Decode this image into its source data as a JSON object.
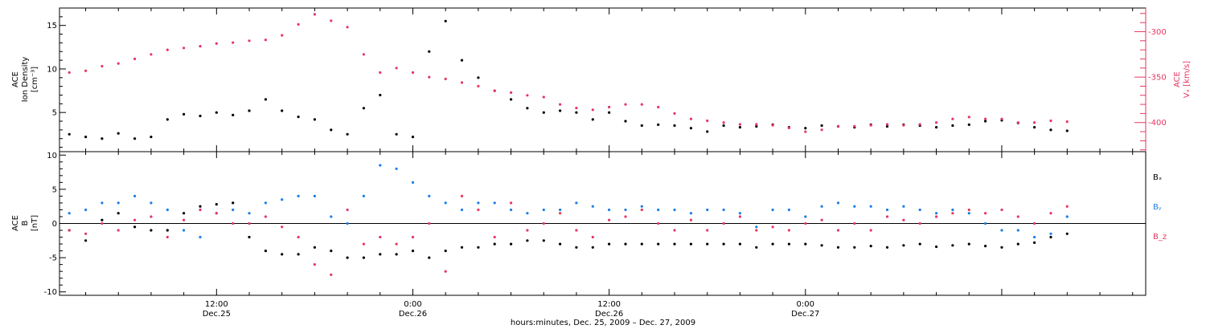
{
  "colors": {
    "black": "#000000",
    "red": "#e8365f",
    "blue": "#1a7fe6"
  },
  "panel_top": {
    "left_axis": {
      "line1": "ACE",
      "line2": "Ion Density",
      "line3": "[cm⁻³]",
      "ticks": [
        "5",
        "10",
        "15"
      ]
    },
    "right_axis": {
      "line1": "ACE",
      "line2": "Vₓ [km/s]",
      "ticks": [
        "-300",
        "-350",
        "-400"
      ]
    }
  },
  "panel_bottom": {
    "left_axis": {
      "line1": "ACE",
      "line2": "B",
      "line3": "[nT]",
      "ticks": [
        "10",
        "5",
        "0",
        "-5",
        "-10"
      ]
    },
    "legend": [
      "Bₓ",
      "Bᵧ",
      "B_z"
    ]
  },
  "x_axis": {
    "tick_labels": [
      {
        "time": "12:00",
        "date": "Dec.25"
      },
      {
        "time": "0:00",
        "date": "Dec.26"
      },
      {
        "time": "12:00",
        "date": "Dec.26"
      },
      {
        "time": "0:00",
        "date": "Dec.27"
      }
    ],
    "title": "hours:minutes, Dec. 25, 2009 – Dec. 27, 2009"
  },
  "chart_data": [
    {
      "type": "scatter",
      "title": "",
      "xlabel": "hours:minutes, Dec. 25, 2009 – Dec. 27, 2009",
      "ylabel": "ACE Ion Density [cm⁻³]",
      "y2label": "ACE Vₓ [km/s]",
      "x_unit": "hours since Dec. 25 00:00",
      "xlim": [
        2.4,
        68.8
      ],
      "ylim": [
        0.5,
        17
      ],
      "y2lim": [
        -432,
        -274
      ],
      "series": [
        {
          "name": "",
          "axis": "left",
          "color": "#000000",
          "x": [
            3,
            4,
            5,
            6,
            7,
            8,
            9,
            10,
            11,
            12,
            13,
            14,
            15,
            16,
            17,
            18,
            19,
            20,
            21,
            22,
            23,
            24,
            25,
            26,
            27,
            28,
            29,
            30,
            31,
            32,
            33,
            34,
            35,
            36,
            37,
            38,
            39,
            40,
            41,
            42,
            43,
            44,
            45,
            46,
            47,
            48,
            49,
            50,
            51,
            52,
            53,
            54,
            55,
            56,
            57,
            58,
            59,
            60,
            61,
            62,
            63,
            64
          ],
          "y": [
            2.5,
            2.2,
            2,
            2.6,
            2,
            2.2,
            4.2,
            4.8,
            4.6,
            5,
            4.7,
            5.2,
            6.5,
            5.2,
            4.5,
            4.2,
            3,
            2.5,
            5.5,
            7,
            2.5,
            2.2,
            12,
            15.5,
            11,
            9,
            7.5,
            6.5,
            5.5,
            5,
            5.2,
            5,
            4.2,
            5,
            4,
            3.5,
            3.6,
            3.5,
            3.2,
            2.8,
            3.5,
            3.3,
            3.4,
            3.6,
            3.3,
            3.2,
            3.5,
            3.4,
            3.3,
            3.6,
            3.4,
            3.6,
            3.5,
            3.3,
            3.5,
            3.6,
            4,
            4.1,
            3.8,
            3.3,
            3,
            2.9
          ]
        },
        {
          "name": "",
          "axis": "right",
          "color": "#e8365f",
          "x": [
            3,
            4,
            5,
            6,
            7,
            8,
            9,
            10,
            11,
            12,
            13,
            14,
            15,
            16,
            17,
            18,
            19,
            20,
            21,
            22,
            23,
            24,
            25,
            26,
            27,
            28,
            29,
            30,
            31,
            32,
            33,
            34,
            35,
            36,
            37,
            38,
            39,
            40,
            41,
            42,
            43,
            44,
            45,
            46,
            47,
            48,
            49,
            50,
            51,
            52,
            53,
            54,
            55,
            56,
            57,
            58,
            59,
            60,
            61,
            62,
            63,
            64
          ],
          "y": [
            -345,
            -343,
            -338,
            -335,
            -330,
            -325,
            -320,
            -318,
            -316,
            -313,
            -312,
            -310,
            -309,
            -304,
            -292,
            -281,
            -288,
            -295,
            -325,
            -345,
            -340,
            -345,
            -350,
            -352,
            -356,
            -360,
            -365,
            -367,
            -370,
            -372,
            -380,
            -384,
            -386,
            -383,
            -380,
            -380,
            -383,
            -390,
            -396,
            -398,
            -400,
            -402,
            -402,
            -403,
            -406,
            -410,
            -408,
            -404,
            -404,
            -403,
            -402,
            -403,
            -402,
            -400,
            -396,
            -394,
            -396,
            -396,
            -400,
            -400,
            -398,
            -399
          ]
        }
      ]
    },
    {
      "type": "scatter",
      "title": "",
      "ylabel": "ACE B [nT]",
      "x_unit": "hours since Dec. 25 00:00",
      "xlim": [
        2.4,
        68.8
      ],
      "ylim": [
        -10.5,
        10.5
      ],
      "zero_line": true,
      "series": [
        {
          "name": "Bₓ",
          "color": "#000000",
          "x": [
            3,
            4,
            5,
            6,
            7,
            8,
            9,
            10,
            11,
            12,
            13,
            14,
            15,
            16,
            17,
            18,
            19,
            20,
            21,
            22,
            23,
            24,
            25,
            26,
            27,
            28,
            29,
            30,
            31,
            32,
            33,
            34,
            35,
            36,
            37,
            38,
            39,
            40,
            41,
            42,
            43,
            44,
            45,
            46,
            47,
            48,
            49,
            50,
            51,
            52,
            53,
            54,
            55,
            56,
            57,
            58,
            59,
            60,
            61,
            62,
            63,
            64
          ],
          "y": [
            -1,
            -2.5,
            0.5,
            1.5,
            -0.5,
            -1,
            -1,
            1.5,
            2.5,
            2.8,
            3,
            -2,
            -4,
            -4.5,
            -4.5,
            -3.5,
            -4,
            -5,
            -5,
            -4.5,
            -4.5,
            -4,
            -5,
            -4,
            -3.5,
            -3.5,
            -3,
            -3,
            -2.5,
            -2.5,
            -3,
            -3.5,
            -3.5,
            -3,
            -3,
            -3,
            -3,
            -3,
            -3,
            -3,
            -3,
            -3,
            -3.5,
            -3,
            -3,
            -3,
            -3.2,
            -3.5,
            -3.5,
            -3.3,
            -3.5,
            -3.2,
            -3,
            -3.4,
            -3.2,
            -3,
            -3.3,
            -3.5,
            -3,
            -2.8,
            -2,
            -1.5
          ]
        },
        {
          "name": "Bᵧ",
          "color": "#1a7fe6",
          "x": [
            3,
            4,
            5,
            6,
            7,
            8,
            9,
            10,
            11,
            12,
            13,
            14,
            15,
            16,
            17,
            18,
            19,
            20,
            21,
            22,
            23,
            24,
            25,
            26,
            27,
            28,
            29,
            30,
            31,
            32,
            33,
            34,
            35,
            36,
            37,
            38,
            39,
            40,
            41,
            42,
            43,
            44,
            45,
            46,
            47,
            48,
            49,
            50,
            51,
            52,
            53,
            54,
            55,
            56,
            57,
            58,
            59,
            60,
            61,
            62,
            63,
            64
          ],
          "y": [
            1.5,
            2,
            3,
            3,
            4,
            3,
            2,
            -1,
            -2,
            1.5,
            2,
            1.5,
            3,
            3.5,
            4,
            4,
            1,
            0,
            4,
            8.5,
            8,
            6,
            4,
            3,
            2,
            3,
            3,
            2,
            1.5,
            2,
            2,
            3,
            2.5,
            2,
            2,
            2.5,
            2,
            2,
            1.5,
            2,
            2,
            1.5,
            -0.5,
            2,
            2,
            1,
            2.5,
            3,
            2.5,
            2.5,
            2,
            2.5,
            2,
            1.5,
            2,
            1.5,
            0,
            -1,
            -1,
            -2,
            -1.5,
            1
          ]
        },
        {
          "name": "B_z",
          "color": "#e8365f",
          "x": [
            3,
            4,
            5,
            6,
            7,
            8,
            9,
            10,
            11,
            12,
            13,
            14,
            15,
            16,
            17,
            18,
            19,
            20,
            21,
            22,
            23,
            24,
            25,
            26,
            27,
            28,
            29,
            30,
            31,
            32,
            33,
            34,
            35,
            36,
            37,
            38,
            39,
            40,
            41,
            42,
            43,
            44,
            45,
            46,
            47,
            48,
            49,
            50,
            51,
            52,
            53,
            54,
            55,
            56,
            57,
            58,
            59,
            60,
            61,
            62,
            63,
            64
          ],
          "y": [
            -1,
            -1.5,
            0,
            -1,
            0.5,
            1,
            -2,
            0.5,
            2,
            1.5,
            0,
            0,
            1,
            -0.5,
            -2,
            -6,
            -7.5,
            2,
            -3,
            -2,
            -3,
            -2,
            0,
            -7,
            4,
            2,
            -2,
            3,
            -1,
            0,
            1.5,
            -1,
            -2,
            0.5,
            1,
            2,
            0,
            -1,
            0.5,
            -1,
            0,
            1,
            -1,
            -0.5,
            -1,
            0,
            0.5,
            -1,
            0,
            -1,
            1,
            0.5,
            0,
            1,
            1.5,
            2,
            1.5,
            2,
            1,
            0,
            1.5,
            2.5
          ]
        }
      ]
    }
  ]
}
